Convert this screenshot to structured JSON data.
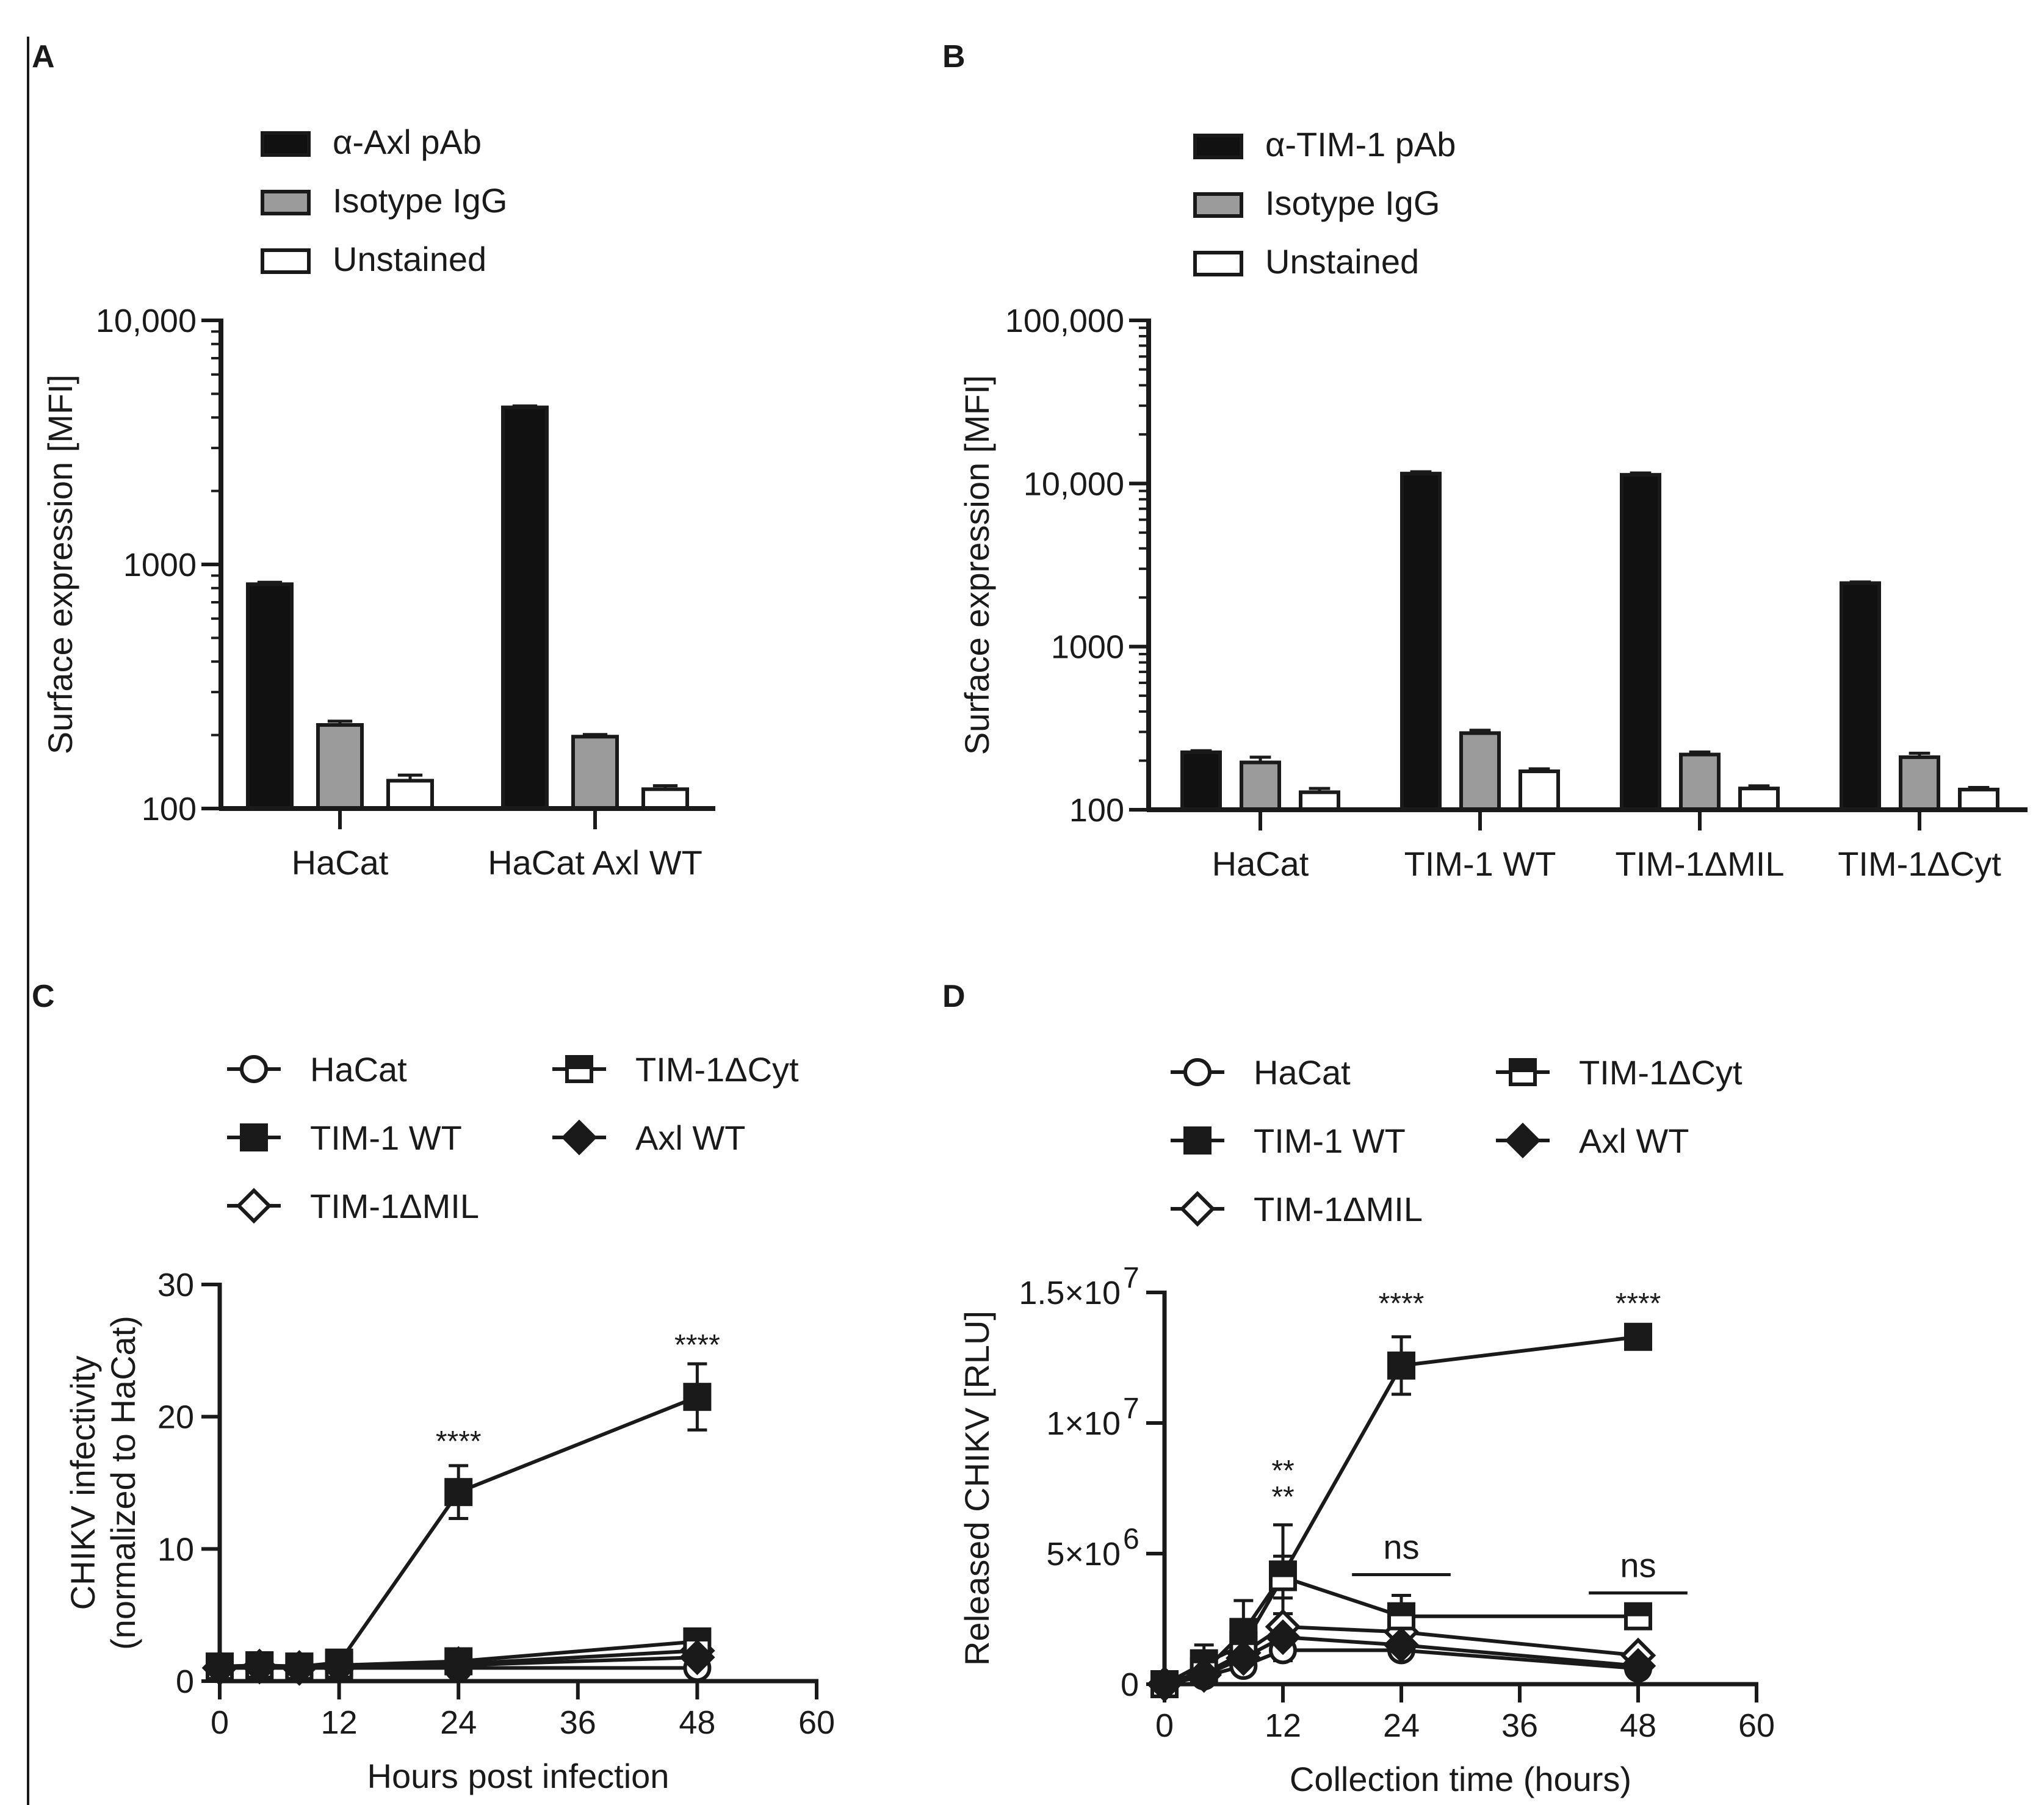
{
  "figure_left_rule": true,
  "chart_data": [
    {
      "panel": "A",
      "type": "bar",
      "yscale": "log",
      "ylim": [
        100,
        10000
      ],
      "yticks": [
        100,
        1000,
        10000
      ],
      "ytick_labels": [
        "100",
        "1000",
        "10,000"
      ],
      "ylabel": "Surface expression [MFI]",
      "xlabel": "",
      "legend_position": "top-left",
      "categories": [
        "HaCat",
        "HaCat Axl WT"
      ],
      "series": [
        {
          "name": "α-Axl pAb",
          "style": "black",
          "values": [
            830,
            4400
          ],
          "errors": [
            15,
            60
          ]
        },
        {
          "name": "Isotype IgG",
          "style": "gray",
          "values": [
            220,
            197
          ],
          "errors": [
            8,
            4
          ]
        },
        {
          "name": "Unstained",
          "style": "white",
          "values": [
            130,
            120
          ],
          "errors": [
            7,
            4
          ]
        }
      ]
    },
    {
      "panel": "B",
      "type": "bar",
      "yscale": "log",
      "ylim": [
        100,
        100000
      ],
      "yticks": [
        100,
        1000,
        10000,
        100000
      ],
      "ytick_labels": [
        "100",
        "1000",
        "10,000",
        "100,000"
      ],
      "ylabel": "Surface expression [MFI]",
      "xlabel": "",
      "legend_position": "top-left",
      "categories": [
        "HaCat",
        "TIM-1 WT",
        "TIM-1ΔMIL",
        "TIM-1ΔCyt"
      ],
      "series": [
        {
          "name": "α-TIM-1 pAb",
          "style": "black",
          "values": [
            225,
            11500,
            11300,
            2450
          ],
          "errors": [
            5,
            300,
            300,
            40
          ]
        },
        {
          "name": "Isotype IgG",
          "style": "gray",
          "values": [
            195,
            295,
            218,
            210
          ],
          "errors": [
            15,
            12,
            8,
            12
          ]
        },
        {
          "name": "Unstained",
          "style": "white",
          "values": [
            128,
            172,
            135,
            133
          ],
          "errors": [
            7,
            6,
            5,
            4
          ]
        }
      ]
    },
    {
      "panel": "C",
      "type": "line",
      "xlabel": "Hours post infection",
      "ylabel": [
        "CHIKV infectivity",
        "(normalized to HaCat)"
      ],
      "xlim": [
        0,
        60
      ],
      "ylim": [
        0,
        30
      ],
      "xticks": [
        0,
        12,
        24,
        36,
        48,
        60
      ],
      "yticks": [
        0,
        10,
        20,
        30
      ],
      "ytick_labels": [
        "0",
        "10",
        "20",
        "30"
      ],
      "legend_position": "top",
      "series": [
        {
          "name": "HaCat",
          "marker": "open-circle",
          "x": [
            0,
            4,
            8,
            12,
            24,
            48
          ],
          "y": [
            1,
            1,
            1,
            1,
            1,
            1
          ],
          "err": [
            0.3,
            0.3,
            0.3,
            0.3,
            0.3,
            0.4
          ]
        },
        {
          "name": "TIM-1 WT",
          "marker": "filled-square",
          "x": [
            0,
            4,
            8,
            12,
            24,
            48
          ],
          "y": [
            1.1,
            1.2,
            1.1,
            1.4,
            14.3,
            21.5
          ],
          "err": [
            0.3,
            0.4,
            0.3,
            0.5,
            2.0,
            2.5
          ]
        },
        {
          "name": "TIM-1ΔMIL",
          "marker": "open-diamond",
          "x": [
            0,
            4,
            8,
            12,
            24,
            48
          ],
          "y": [
            1,
            1.1,
            1,
            1.1,
            1.3,
            2.3
          ],
          "err": [
            0.3,
            0.3,
            0.3,
            0.3,
            0.3,
            0.4
          ]
        },
        {
          "name": "TIM-1ΔCyt",
          "marker": "half-square",
          "x": [
            0,
            4,
            8,
            12,
            24,
            48
          ],
          "y": [
            1.1,
            1.2,
            1.1,
            1.2,
            1.5,
            3.0
          ],
          "err": [
            0.3,
            0.3,
            0.3,
            0.3,
            0.3,
            0.5
          ]
        },
        {
          "name": "Axl WT",
          "marker": "filled-diamond",
          "x": [
            0,
            4,
            8,
            12,
            24,
            48
          ],
          "y": [
            1,
            1.1,
            1,
            1.1,
            1.2,
            1.8
          ],
          "err": [
            0.3,
            0.3,
            0.3,
            0.3,
            0.3,
            0.3
          ]
        }
      ],
      "annotations": [
        {
          "text": "****",
          "x": 24,
          "y": 17.4
        },
        {
          "text": "****",
          "x": 48,
          "y": 24.7
        }
      ]
    },
    {
      "panel": "D",
      "type": "line",
      "xlabel": "Collection time (hours)",
      "ylabel": "Released CHIKV [RLU]",
      "xlim": [
        0,
        60
      ],
      "ylim": [
        0,
        15000000
      ],
      "xticks": [
        0,
        12,
        24,
        36,
        48,
        60
      ],
      "yticks": [
        0,
        5000000,
        10000000,
        15000000
      ],
      "ytick_labels": [
        {
          "base": "0",
          "exp": ""
        },
        {
          "base": "5×10",
          "exp": "6"
        },
        {
          "base": "1×10",
          "exp": "7"
        },
        {
          "base": "1.5×10",
          "exp": "7"
        }
      ],
      "legend_position": "top",
      "series": [
        {
          "name": "HaCat",
          "marker": "open-circle",
          "x": [
            0,
            4,
            8,
            12,
            24,
            48
          ],
          "y": [
            0,
            300000,
            700000,
            1300000,
            1300000,
            600000
          ],
          "err": [
            50000,
            200000,
            300000,
            400000,
            300000,
            100000
          ]
        },
        {
          "name": "TIM-1 WT",
          "marker": "filled-square",
          "x": [
            0,
            4,
            8,
            12,
            24,
            48
          ],
          "y": [
            0,
            500000,
            2000000,
            4200000,
            12200000,
            13300000
          ],
          "err": [
            50000,
            600000,
            1200000,
            1900000,
            1100000,
            250000
          ]
        },
        {
          "name": "TIM-1ΔMIL",
          "marker": "open-diamond",
          "x": [
            0,
            4,
            8,
            12,
            24,
            48
          ],
          "y": [
            0,
            400000,
            1200000,
            2200000,
            2000000,
            1100000
          ],
          "err": [
            50000,
            300000,
            400000,
            500000,
            400000,
            200000
          ]
        },
        {
          "name": "TIM-1ΔCyt",
          "marker": "half-square",
          "x": [
            0,
            4,
            8,
            12,
            24,
            48
          ],
          "y": [
            0,
            800000,
            1500000,
            4100000,
            2600000,
            2600000
          ],
          "err": [
            50000,
            700000,
            600000,
            800000,
            800000,
            300000
          ]
        },
        {
          "name": "Axl WT",
          "marker": "filled-diamond",
          "x": [
            0,
            4,
            8,
            12,
            24,
            48
          ],
          "y": [
            0,
            350000,
            1000000,
            1800000,
            1500000,
            700000
          ],
          "err": [
            50000,
            250000,
            300000,
            400000,
            300000,
            150000
          ]
        }
      ],
      "annotations": [
        {
          "text": "****",
          "x": 24,
          "y": 14200000
        },
        {
          "text": "****",
          "x": 48,
          "y": 14200000
        },
        {
          "text": "**",
          "x": 12,
          "y": 7800000
        },
        {
          "text": "**",
          "x": 12,
          "y": 6800000
        },
        {
          "text": "ns",
          "x": 24,
          "y": 4800000,
          "bracket": [
            19,
            29
          ]
        },
        {
          "text": "ns",
          "x": 48,
          "y": 4100000,
          "bracket": [
            43,
            53
          ]
        }
      ]
    }
  ]
}
